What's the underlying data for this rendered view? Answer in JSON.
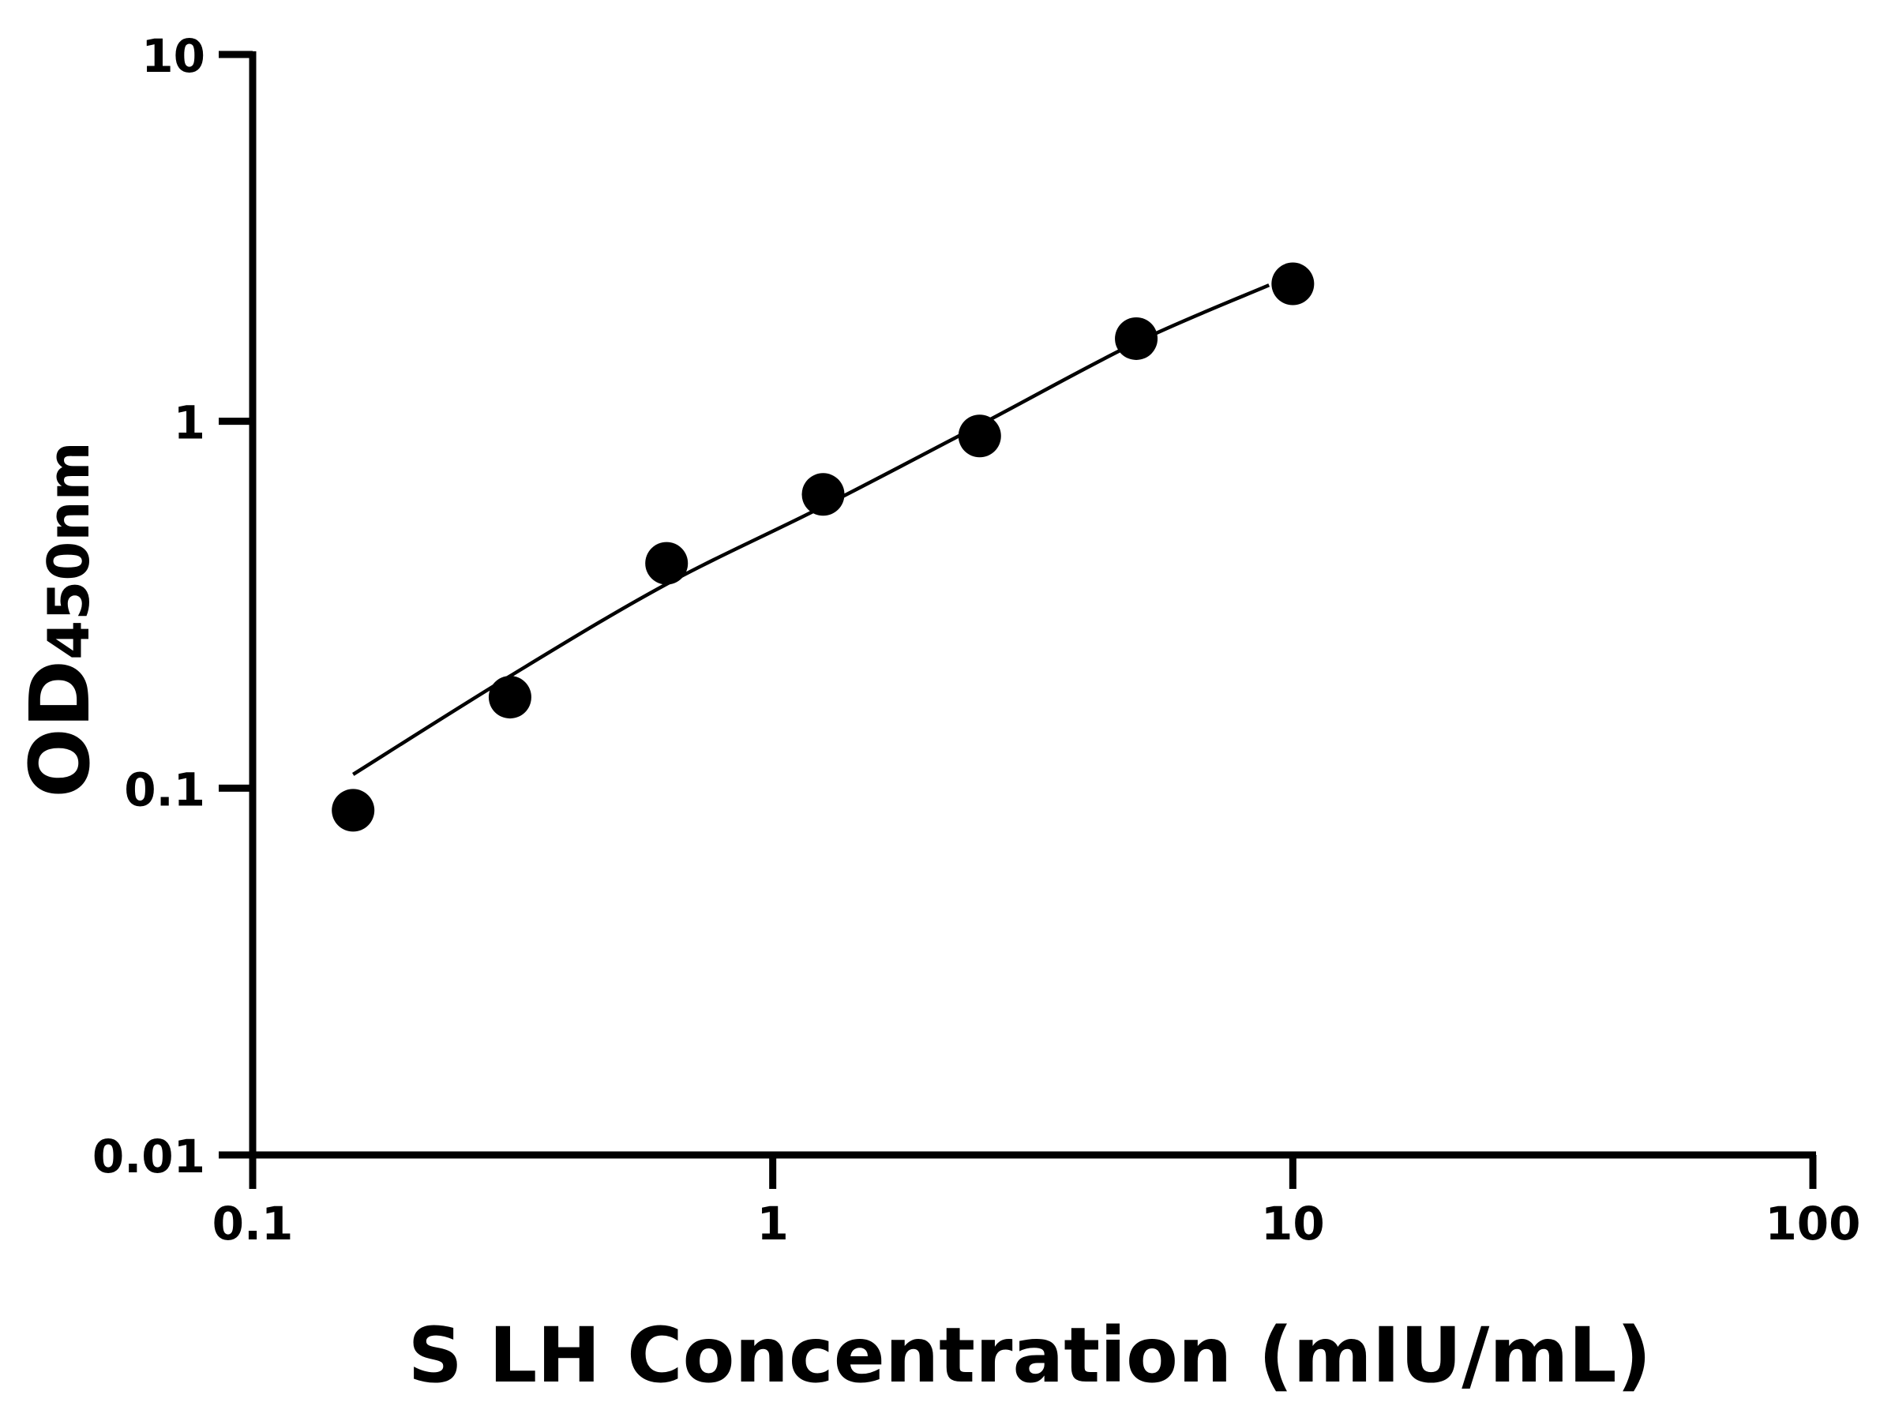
{
  "chart_data": {
    "type": "scatter",
    "title": "",
    "xlabel": "S LH Concentration (mIU/mL)",
    "ylabel_main": "OD",
    "ylabel_sub": "450nm",
    "x_scale": "log",
    "y_scale": "log",
    "xlim": [
      0.1,
      100
    ],
    "ylim": [
      0.01,
      10
    ],
    "x_ticks": [
      0.1,
      1,
      10,
      100
    ],
    "x_tick_labels": [
      "0.1",
      "1",
      "10",
      "100"
    ],
    "y_ticks": [
      0.01,
      0.1,
      1,
      10
    ],
    "y_tick_labels": [
      "0.01",
      "0.1",
      "1",
      "10"
    ],
    "grid": false,
    "points": {
      "x": [
        0.156,
        0.3125,
        0.625,
        1.25,
        2.5,
        5,
        10
      ],
      "y": [
        0.087,
        0.177,
        0.41,
        0.632,
        0.912,
        1.68,
        2.37
      ]
    },
    "fit_curve": {
      "x": [
        0.156,
        0.3125,
        0.625,
        1.25,
        2.5,
        5,
        9
      ],
      "y": [
        0.109,
        0.202,
        0.36,
        0.586,
        0.977,
        1.64,
        2.35
      ]
    },
    "colors": {
      "marks": "#000000",
      "background": "#ffffff"
    }
  }
}
